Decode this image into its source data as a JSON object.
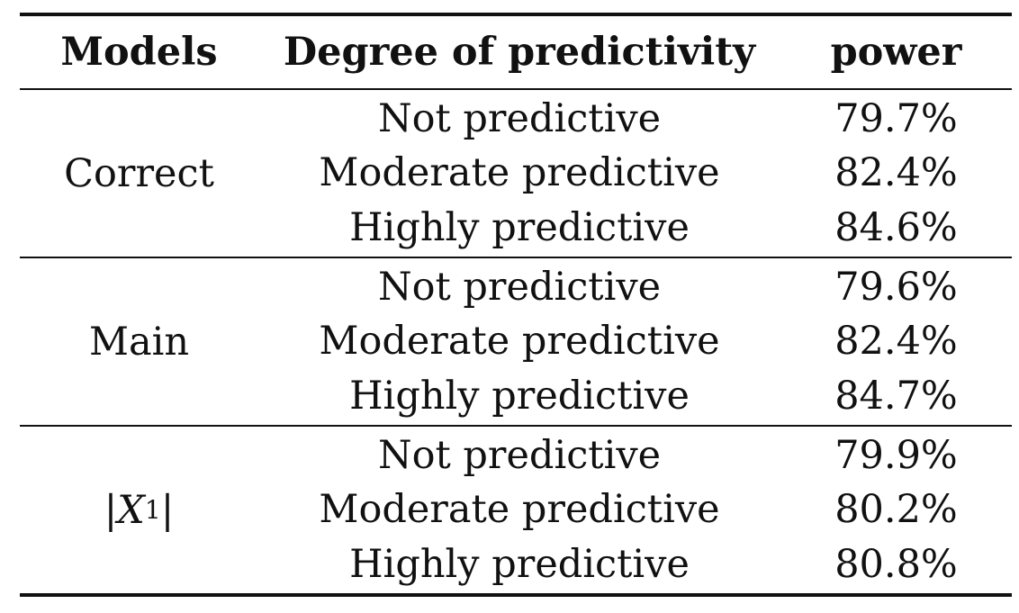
{
  "table": {
    "headers": {
      "model": "Models",
      "degree": "Degree of predictivity",
      "power": "power"
    },
    "groups": [
      {
        "model": "Correct",
        "rows": [
          {
            "degree": "Not predictive",
            "power": "79.7%"
          },
          {
            "degree": "Moderate predictive",
            "power": "82.4%"
          },
          {
            "degree": "Highly predictive",
            "power": "84.6%"
          }
        ]
      },
      {
        "model": "Main",
        "rows": [
          {
            "degree": "Not predictive",
            "power": "79.6%"
          },
          {
            "degree": "Moderate predictive",
            "power": "82.4%"
          },
          {
            "degree": "Highly predictive",
            "power": "84.7%"
          }
        ]
      },
      {
        "model_math": {
          "open": "|",
          "var": "X",
          "sub": "1",
          "close": "|"
        },
        "rows": [
          {
            "degree": "Not predictive",
            "power": "79.9%"
          },
          {
            "degree": "Moderate predictive",
            "power": "80.2%"
          },
          {
            "degree": "Highly predictive",
            "power": "80.8%"
          }
        ]
      }
    ]
  }
}
